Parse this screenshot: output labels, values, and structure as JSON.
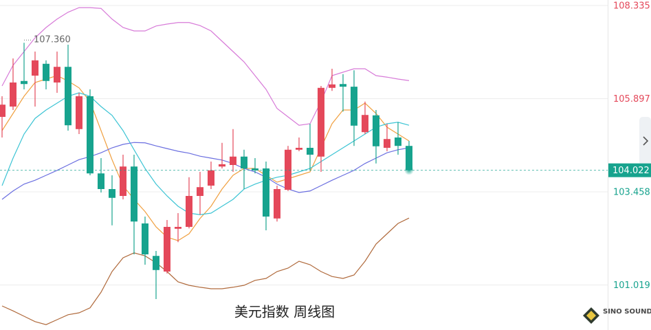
{
  "chart_data": {
    "type": "candlestick",
    "title": "美元指数 周线图",
    "ylim": [
      99.84,
      108.48
    ],
    "yticks": [
      108.335,
      105.897,
      103.458,
      101.019
    ],
    "grid": true,
    "last_price": 104.022,
    "high_annotation": {
      "value": 107.36,
      "label": "107.360"
    },
    "up_color": "#e4485a",
    "down_color": "#17a38e",
    "open": [
      105.42,
      105.69,
      106.36,
      106.5,
      106.81,
      106.32,
      106.73,
      105.1,
      105.96,
      103.94,
      103.53,
      103.35,
      104.12,
      102.63,
      101.78,
      101.37,
      102.49,
      102.54,
      103.35,
      103.62,
      104.12,
      104.16,
      104.38,
      104.07,
      104.07,
      102.76,
      103.51,
      104.56,
      104.61,
      104.38,
      106.18,
      106.28,
      106.21,
      105.02,
      105.46,
      104.61,
      104.88,
      104.66
    ],
    "high": [
      105.96,
      106.95,
      107.36,
      107.13,
      106.9,
      107.13,
      107.31,
      106.05,
      106.14,
      104.34,
      103.89,
      104.43,
      104.43,
      102.81,
      101.91,
      102.72,
      102.9,
      103.84,
      103.98,
      104.25,
      104.74,
      105.1,
      104.56,
      104.34,
      104.25,
      103.62,
      104.66,
      104.88,
      105.24,
      106.23,
      106.68,
      106.54,
      106.64,
      105.82,
      105.6,
      105.24,
      105.28,
      104.79
    ],
    "low": [
      104.88,
      105.6,
      106.14,
      105.69,
      106.14,
      106.05,
      105.06,
      104.97,
      103.89,
      103.44,
      102.58,
      103.26,
      101.82,
      101.55,
      100.65,
      101.32,
      102.14,
      102.5,
      102.86,
      103.53,
      104.07,
      103.98,
      103.53,
      103.94,
      102.45,
      102.68,
      103.48,
      104.52,
      104.02,
      103.98,
      106.1,
      105.56,
      104.66,
      104.97,
      104.2,
      104.52,
      104.43,
      104.07
    ],
    "close": [
      105.74,
      106.32,
      106.28,
      106.9,
      106.36,
      106.73,
      105.2,
      105.96,
      103.94,
      103.53,
      103.3,
      104.12,
      102.68,
      101.82,
      101.41,
      102.54,
      102.54,
      103.35,
      103.58,
      104.02,
      104.18,
      104.38,
      104.07,
      104.02,
      102.81,
      103.53,
      104.56,
      104.61,
      104.43,
      106.18,
      106.27,
      106.21,
      105.19,
      105.47,
      104.65,
      104.84,
      104.66,
      104.022
    ],
    "lines": [
      {
        "color": "#f0a040",
        "values": [
          105.06,
          105.51,
          105.96,
          106.32,
          106.41,
          106.5,
          106.36,
          106.18,
          105.82,
          105.06,
          104.3,
          103.62,
          103.26,
          102.94,
          102.54,
          102.27,
          102.18,
          102.36,
          102.76,
          103.08,
          103.53,
          103.89,
          104.07,
          104.07,
          103.89,
          103.71,
          103.8,
          103.89,
          103.98,
          104.61,
          105.24,
          105.6,
          105.6,
          105.78,
          105.51,
          105.15,
          104.97,
          104.79
        ]
      },
      {
        "color": "#3cc4d4",
        "values": [
          103.62,
          104.34,
          104.97,
          105.38,
          105.6,
          105.78,
          105.96,
          106.05,
          105.96,
          105.69,
          105.46,
          105.06,
          104.56,
          104.07,
          103.66,
          103.35,
          103.08,
          102.9,
          102.86,
          102.9,
          103.08,
          103.26,
          103.53,
          103.66,
          103.76,
          103.84,
          103.89,
          103.98,
          104.07,
          104.25,
          104.43,
          104.61,
          104.79,
          104.97,
          105.15,
          105.24,
          105.28,
          105.2
        ]
      },
      {
        "color": "#6a6ee0",
        "values": [
          103.26,
          103.48,
          103.66,
          103.76,
          103.89,
          104.02,
          104.16,
          104.3,
          104.38,
          104.48,
          104.61,
          104.7,
          104.75,
          104.74,
          104.66,
          104.59,
          104.52,
          104.47,
          104.39,
          104.34,
          104.29,
          104.2,
          104.07,
          103.98,
          103.84,
          103.66,
          103.53,
          103.44,
          103.48,
          103.62,
          103.76,
          103.89,
          104.02,
          104.2,
          104.34,
          104.48,
          104.56,
          104.61
        ]
      },
      {
        "color": "#d77ad8",
        "values": [
          106.23,
          106.77,
          107.13,
          107.49,
          107.76,
          107.98,
          108.16,
          108.28,
          108.28,
          108.26,
          107.98,
          107.76,
          107.67,
          107.67,
          107.8,
          107.85,
          107.89,
          107.89,
          107.81,
          107.67,
          107.4,
          107.13,
          106.86,
          106.5,
          106.14,
          105.64,
          105.42,
          105.2,
          105.24,
          105.82,
          106.5,
          106.59,
          106.68,
          106.68,
          106.5,
          106.46,
          106.41,
          106.37
        ]
      },
      {
        "color": "#b06a3c",
        "values": [
          100.47,
          100.34,
          100.2,
          100.06,
          99.98,
          100.11,
          100.24,
          100.29,
          100.42,
          100.83,
          101.37,
          101.73,
          101.86,
          101.78,
          101.6,
          101.37,
          101.1,
          101.01,
          100.96,
          100.92,
          100.92,
          100.96,
          101.01,
          101.14,
          101.19,
          101.37,
          101.46,
          101.64,
          101.55,
          101.37,
          101.24,
          101.19,
          101.28,
          101.64,
          102.09,
          102.36,
          102.63,
          102.77
        ]
      }
    ]
  },
  "logo": "SINO SOUND"
}
